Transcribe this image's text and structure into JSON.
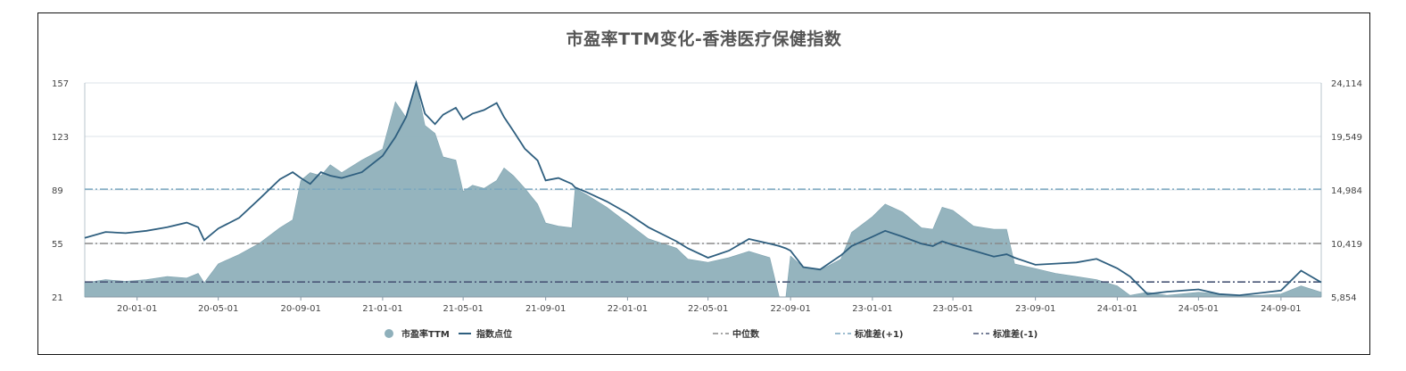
{
  "chart_data": {
    "type": "area",
    "title": "市盈率TTM变化-香港医疗保健指数",
    "x_ticks": [
      "20-01-01",
      "20-05-01",
      "20-09-01",
      "21-01-01",
      "21-05-01",
      "21-09-01",
      "22-01-01",
      "22-05-01",
      "22-09-01",
      "23-01-01",
      "23-05-01",
      "23-09-01",
      "24-01-01",
      "24-05-01",
      "24-09-01"
    ],
    "y_left_ticks": [
      "157",
      "123",
      "89",
      "55",
      "21"
    ],
    "y_right_ticks": [
      "24,114",
      "19,549",
      "14,984",
      "10,419",
      "5,854"
    ],
    "y_left_range": [
      21,
      157
    ],
    "y_right_range": [
      5854,
      24114
    ],
    "x_range": [
      "2019-10-15",
      "2024-10-31"
    ],
    "grid": true,
    "legend": {
      "position": "bottom",
      "items": [
        {
          "label": "市盈率TTM",
          "symbol": "circle",
          "color": "#8fb0bb"
        },
        {
          "label": "指数点位",
          "symbol": "line",
          "color": "#2f5f7f"
        },
        {
          "label": "中位数",
          "symbol": "dash-dot",
          "color": "#888888"
        },
        {
          "label": "标准差(+1)",
          "symbol": "dash-dot",
          "color": "#7aa6bf"
        },
        {
          "label": "标准差(-1)",
          "symbol": "dash-dot",
          "color": "#4a5677"
        }
      ]
    },
    "reference_lines": [
      {
        "name": "中位数",
        "value": 55,
        "color": "#888888"
      },
      {
        "name": "标准差(+1)",
        "value": 89.5,
        "color": "#7aa6bf"
      },
      {
        "name": "标准差(-1)",
        "value": 30.5,
        "color": "#4a5677"
      }
    ],
    "series": [
      {
        "name": "市盈率TTM",
        "axis": "left",
        "color": "#8fb0bb",
        "points": [
          [
            "2019-10-15",
            30
          ],
          [
            "2019-11-15",
            32
          ],
          [
            "2019-12-15",
            31
          ],
          [
            "2020-01-15",
            32
          ],
          [
            "2020-02-15",
            34
          ],
          [
            "2020-03-15",
            33
          ],
          [
            "2020-04-01",
            36
          ],
          [
            "2020-04-10",
            30
          ],
          [
            "2020-05-01",
            42
          ],
          [
            "2020-06-01",
            48
          ],
          [
            "2020-07-01",
            55
          ],
          [
            "2020-08-01",
            65
          ],
          [
            "2020-08-20",
            70
          ],
          [
            "2020-09-01",
            95
          ],
          [
            "2020-09-15",
            100
          ],
          [
            "2020-10-01",
            98
          ],
          [
            "2020-10-15",
            105
          ],
          [
            "2020-11-01",
            100
          ],
          [
            "2020-12-01",
            108
          ],
          [
            "2021-01-01",
            115
          ],
          [
            "2021-01-20",
            145
          ],
          [
            "2021-02-05",
            135
          ],
          [
            "2021-02-20",
            157
          ],
          [
            "2021-03-05",
            130
          ],
          [
            "2021-03-20",
            125
          ],
          [
            "2021-04-01",
            110
          ],
          [
            "2021-04-20",
            108
          ],
          [
            "2021-05-01",
            88
          ],
          [
            "2021-05-15",
            92
          ],
          [
            "2021-06-01",
            90
          ],
          [
            "2021-06-20",
            95
          ],
          [
            "2021-07-01",
            103
          ],
          [
            "2021-07-15",
            98
          ],
          [
            "2021-08-01",
            90
          ],
          [
            "2021-08-20",
            80
          ],
          [
            "2021-09-01",
            68
          ],
          [
            "2021-09-20",
            66
          ],
          [
            "2021-10-10",
            65
          ],
          [
            "2021-10-15",
            90
          ],
          [
            "2021-11-01",
            86
          ],
          [
            "2021-12-01",
            78
          ],
          [
            "2022-01-01",
            68
          ],
          [
            "2022-02-01",
            58
          ],
          [
            "2022-03-15",
            52
          ],
          [
            "2022-04-01",
            45
          ],
          [
            "2022-05-01",
            43
          ],
          [
            "2022-06-01",
            46
          ],
          [
            "2022-07-01",
            50
          ],
          [
            "2022-08-01",
            46
          ],
          [
            "2022-08-15",
            0
          ],
          [
            "2022-08-25",
            0
          ],
          [
            "2022-09-01",
            47
          ],
          [
            "2022-09-20",
            40
          ],
          [
            "2022-10-15",
            38
          ],
          [
            "2022-11-15",
            45
          ],
          [
            "2022-12-01",
            62
          ],
          [
            "2023-01-01",
            72
          ],
          [
            "2023-01-20",
            80
          ],
          [
            "2023-02-15",
            75
          ],
          [
            "2023-03-15",
            65
          ],
          [
            "2023-04-01",
            64
          ],
          [
            "2023-04-15",
            78
          ],
          [
            "2023-05-01",
            76
          ],
          [
            "2023-06-01",
            66
          ],
          [
            "2023-07-01",
            64
          ],
          [
            "2023-07-20",
            64
          ],
          [
            "2023-08-01",
            42
          ],
          [
            "2023-09-01",
            39
          ],
          [
            "2023-10-01",
            36
          ],
          [
            "2023-11-01",
            34
          ],
          [
            "2023-12-01",
            32
          ],
          [
            "2024-01-01",
            28
          ],
          [
            "2024-01-20",
            22
          ],
          [
            "2024-02-15",
            24
          ],
          [
            "2024-03-15",
            22
          ],
          [
            "2024-05-01",
            24
          ],
          [
            "2024-06-01",
            23
          ],
          [
            "2024-07-01",
            22
          ],
          [
            "2024-08-01",
            22
          ],
          [
            "2024-09-01",
            23
          ],
          [
            "2024-10-01",
            28
          ],
          [
            "2024-10-31",
            24
          ]
        ]
      },
      {
        "name": "指数点位",
        "axis": "right",
        "color": "#2f5f7f",
        "points": [
          [
            "2019-10-15",
            10900
          ],
          [
            "2019-11-15",
            11400
          ],
          [
            "2019-12-15",
            11300
          ],
          [
            "2020-01-15",
            11500
          ],
          [
            "2020-02-15",
            11800
          ],
          [
            "2020-03-15",
            12200
          ],
          [
            "2020-04-01",
            11800
          ],
          [
            "2020-04-10",
            10700
          ],
          [
            "2020-05-01",
            11700
          ],
          [
            "2020-06-01",
            12600
          ],
          [
            "2020-07-01",
            14200
          ],
          [
            "2020-08-01",
            15900
          ],
          [
            "2020-08-20",
            16500
          ],
          [
            "2020-09-01",
            16000
          ],
          [
            "2020-09-15",
            15500
          ],
          [
            "2020-10-01",
            16500
          ],
          [
            "2020-10-15",
            16200
          ],
          [
            "2020-11-01",
            16000
          ],
          [
            "2020-12-01",
            16500
          ],
          [
            "2021-01-01",
            17900
          ],
          [
            "2021-01-20",
            19500
          ],
          [
            "2021-02-05",
            21200
          ],
          [
            "2021-02-20",
            24114
          ],
          [
            "2021-03-05",
            21500
          ],
          [
            "2021-03-20",
            20600
          ],
          [
            "2021-04-01",
            21400
          ],
          [
            "2021-04-20",
            22000
          ],
          [
            "2021-05-01",
            21000
          ],
          [
            "2021-05-15",
            21500
          ],
          [
            "2021-06-01",
            21800
          ],
          [
            "2021-06-20",
            22400
          ],
          [
            "2021-07-01",
            21200
          ],
          [
            "2021-07-15",
            20000
          ],
          [
            "2021-08-01",
            18500
          ],
          [
            "2021-08-20",
            17500
          ],
          [
            "2021-09-01",
            15800
          ],
          [
            "2021-09-20",
            16000
          ],
          [
            "2021-10-10",
            15500
          ],
          [
            "2021-10-15",
            15200
          ],
          [
            "2021-11-01",
            14800
          ],
          [
            "2021-12-01",
            14000
          ],
          [
            "2022-01-01",
            13000
          ],
          [
            "2022-02-01",
            11800
          ],
          [
            "2022-03-15",
            10600
          ],
          [
            "2022-04-01",
            10000
          ],
          [
            "2022-05-01",
            9200
          ],
          [
            "2022-06-01",
            9800
          ],
          [
            "2022-07-01",
            10800
          ],
          [
            "2022-08-01",
            10400
          ],
          [
            "2022-08-15",
            10200
          ],
          [
            "2022-08-25",
            10000
          ],
          [
            "2022-09-01",
            9800
          ],
          [
            "2022-09-20",
            8400
          ],
          [
            "2022-10-15",
            8200
          ],
          [
            "2022-11-15",
            9400
          ],
          [
            "2022-12-01",
            10200
          ],
          [
            "2023-01-01",
            11000
          ],
          [
            "2023-01-20",
            11500
          ],
          [
            "2023-02-15",
            11000
          ],
          [
            "2023-03-15",
            10400
          ],
          [
            "2023-04-01",
            10200
          ],
          [
            "2023-04-15",
            10600
          ],
          [
            "2023-05-01",
            10300
          ],
          [
            "2023-06-01",
            9800
          ],
          [
            "2023-07-01",
            9300
          ],
          [
            "2023-07-20",
            9500
          ],
          [
            "2023-08-01",
            9200
          ],
          [
            "2023-09-01",
            8600
          ],
          [
            "2023-10-01",
            8700
          ],
          [
            "2023-11-01",
            8800
          ],
          [
            "2023-12-01",
            9100
          ],
          [
            "2024-01-01",
            8300
          ],
          [
            "2024-01-20",
            7600
          ],
          [
            "2024-02-15",
            6100
          ],
          [
            "2024-03-15",
            6300
          ],
          [
            "2024-05-01",
            6500
          ],
          [
            "2024-06-01",
            6100
          ],
          [
            "2024-07-01",
            6000
          ],
          [
            "2024-08-01",
            6200
          ],
          [
            "2024-09-01",
            6400
          ],
          [
            "2024-10-01",
            8100
          ],
          [
            "2024-10-31",
            7100
          ]
        ]
      }
    ]
  }
}
